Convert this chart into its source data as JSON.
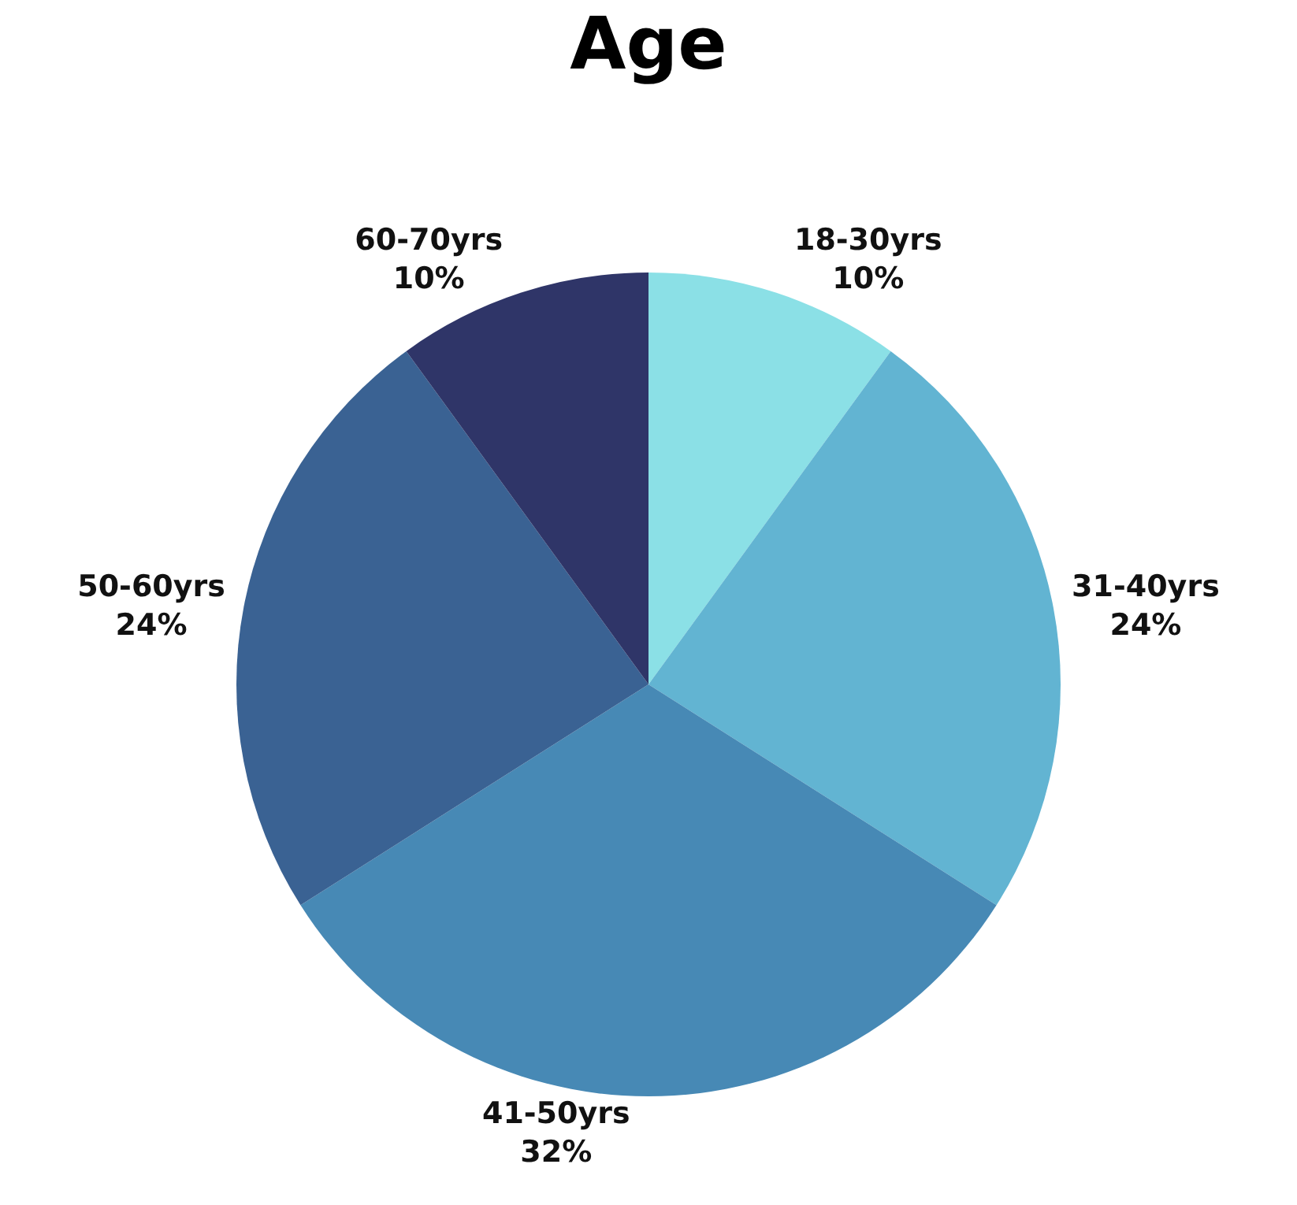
{
  "chart_data": {
    "type": "pie",
    "title": "Age",
    "categories": [
      "18-30yrs",
      "31-40yrs",
      "41-50yrs",
      "50-60yrs",
      "60-70yrs"
    ],
    "values": [
      10,
      24,
      32,
      24,
      10
    ],
    "value_labels": [
      "10%",
      "24%",
      "32%",
      "24%",
      "10%"
    ],
    "colors": [
      "#8be0e6",
      "#62b4d2",
      "#4789b5",
      "#3a6293",
      "#2f3568"
    ],
    "legend": false
  }
}
